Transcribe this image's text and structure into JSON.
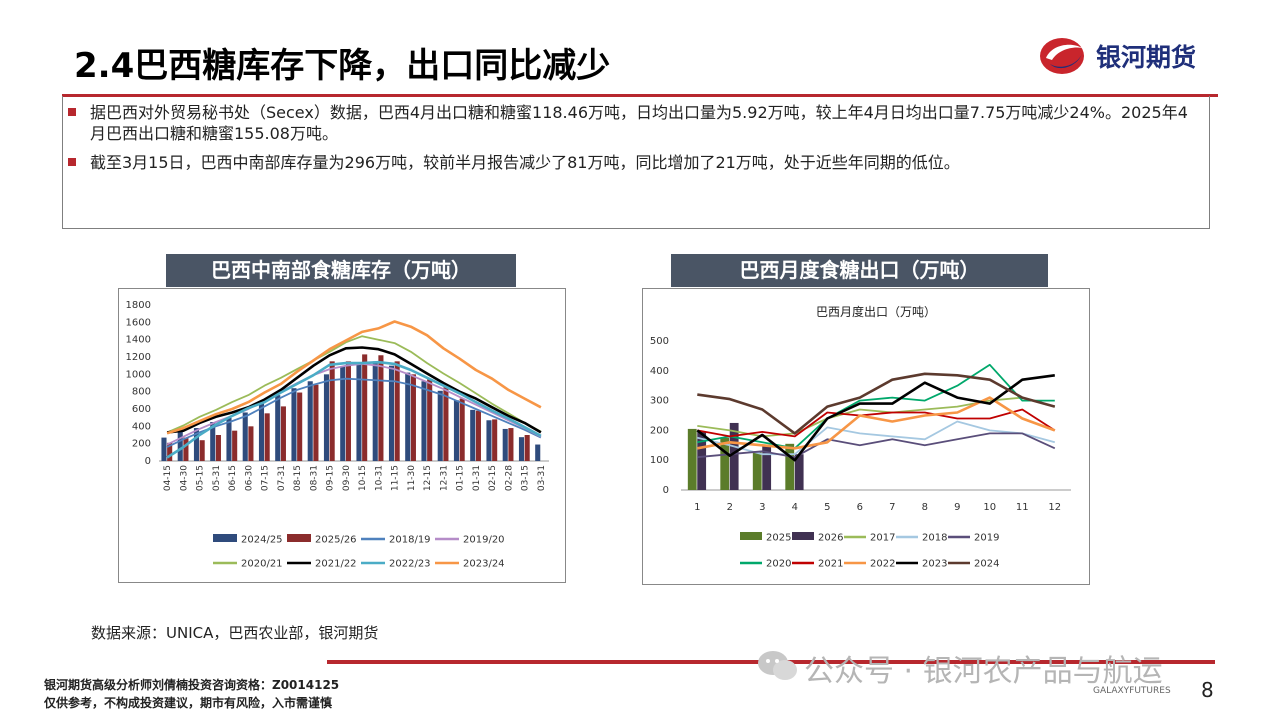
{
  "header": {
    "title": "2.4巴西糖库存下降，出口同比减少",
    "logo_text": "银河期货",
    "accent": "#b7282e"
  },
  "notes": [
    "据巴西对外贸易秘书处（Secex）数据，巴西4月出口糖和糖蜜118.46万吨，日均出口量为5.92万吨，较上年4月日均出口量7.75万吨减少24%。2025年4月巴西出口糖和糖蜜155.08万吨。",
    "截至3月15日，巴西中南部库存量为296万吨，较前半月报告减少了81万吨，同比增加了21万吨，处于近些年同期的低位。"
  ],
  "chart_data": [
    {
      "type": "bar",
      "title": "巴西中南部食糖库存（万吨）",
      "ylim": [
        0,
        1800
      ],
      "yticks": [
        0,
        200,
        400,
        600,
        800,
        1000,
        1200,
        1400,
        1600,
        1800
      ],
      "categories": [
        "04-15",
        "04-30",
        "05-15",
        "05-31",
        "06-15",
        "06-30",
        "07-15",
        "07-31",
        "08-15",
        "08-31",
        "09-15",
        "09-30",
        "10-15",
        "10-31",
        "11-15",
        "11-30",
        "12-15",
        "12-31",
        "01-15",
        "01-31",
        "02-15",
        "02-28",
        "03-15",
        "03-31"
      ],
      "legend_placement": "bottom",
      "series": [
        {
          "name": "2024/25",
          "kind": "bar",
          "color": "#2f4b7c",
          "values": [
            270,
            340,
            380,
            450,
            500,
            560,
            670,
            760,
            840,
            920,
            1000,
            1090,
            1140,
            1150,
            1100,
            1020,
            920,
            810,
            700,
            590,
            470,
            370,
            275,
            190
          ]
        },
        {
          "name": "2025/26",
          "kind": "bar",
          "color": "#8b2c2c",
          "values": [
            210,
            270,
            240,
            300,
            350,
            400,
            550,
            630,
            790,
            880,
            1150,
            1150,
            1230,
            1220,
            1150,
            1000,
            940,
            850,
            720,
            580,
            480,
            380,
            300,
            null
          ]
        },
        {
          "name": "2018/19",
          "kind": "line",
          "color": "#4f81bd",
          "values": [
            160,
            250,
            330,
            400,
            460,
            530,
            630,
            730,
            820,
            880,
            930,
            950,
            940,
            930,
            920,
            880,
            820,
            760,
            680,
            600,
            520,
            440,
            360,
            270
          ]
        },
        {
          "name": "2019/20",
          "kind": "line",
          "color": "#b58cc8",
          "values": [
            190,
            280,
            370,
            450,
            520,
            600,
            700,
            800,
            900,
            990,
            1060,
            1100,
            1120,
            1100,
            1060,
            990,
            910,
            830,
            740,
            650,
            560,
            470,
            380,
            280
          ]
        },
        {
          "name": "2020/21",
          "kind": "line",
          "color": "#9bbb59",
          "values": [
            330,
            410,
            510,
            590,
            680,
            760,
            870,
            960,
            1060,
            1160,
            1260,
            1370,
            1440,
            1400,
            1360,
            1260,
            1130,
            1010,
            900,
            780,
            660,
            550,
            440,
            340
          ]
        },
        {
          "name": "2021/22",
          "kind": "line",
          "color": "#000000",
          "values": [
            330,
            350,
            440,
            510,
            560,
            620,
            710,
            820,
            960,
            1100,
            1220,
            1300,
            1310,
            1290,
            1230,
            1120,
            1010,
            900,
            800,
            720,
            620,
            520,
            440,
            330
          ]
        },
        {
          "name": "2022/23",
          "kind": "line",
          "color": "#4bacc6",
          "values": [
            40,
            160,
            300,
            420,
            520,
            610,
            680,
            790,
            890,
            990,
            1110,
            1130,
            1130,
            1140,
            1120,
            1050,
            960,
            870,
            780,
            680,
            580,
            490,
            390,
            290
          ]
        },
        {
          "name": "2023/24",
          "kind": "line",
          "color": "#f79646",
          "values": [
            320,
            380,
            460,
            540,
            600,
            680,
            790,
            890,
            1030,
            1160,
            1290,
            1390,
            1490,
            1530,
            1610,
            1550,
            1450,
            1300,
            1180,
            1050,
            950,
            820,
            720,
            620
          ]
        }
      ]
    },
    {
      "type": "bar",
      "title": "巴西月度食糖出口（万吨）",
      "inner_title": "巴西月度出口（万吨）",
      "ylim": [
        0,
        500
      ],
      "yticks": [
        0,
        100,
        200,
        300,
        400,
        500
      ],
      "categories": [
        "1",
        "2",
        "3",
        "4",
        "5",
        "6",
        "7",
        "8",
        "9",
        "10",
        "11",
        "12"
      ],
      "legend_placement": "bottom",
      "series": [
        {
          "name": "2025",
          "kind": "bar",
          "color": "#5b7c2a",
          "values": [
            205,
            175,
            130,
            155,
            null,
            null,
            null,
            null,
            null,
            null,
            null,
            null
          ]
        },
        {
          "name": "2026",
          "kind": "bar",
          "color": "#403152",
          "values": [
            195,
            225,
            150,
            120,
            null,
            null,
            null,
            null,
            null,
            null,
            null,
            null
          ]
        },
        {
          "name": "2017",
          "kind": "line",
          "color": "#9bbb59",
          "values": [
            215,
            200,
            180,
            190,
            240,
            270,
            260,
            270,
            280,
            300,
            310,
            280
          ]
        },
        {
          "name": "2018",
          "kind": "line",
          "color": "#a5c8e1",
          "values": [
            175,
            150,
            120,
            120,
            210,
            190,
            180,
            170,
            230,
            200,
            190,
            160
          ]
        },
        {
          "name": "2019",
          "kind": "line",
          "color": "#5a4e7a",
          "values": [
            110,
            120,
            130,
            110,
            170,
            150,
            170,
            150,
            170,
            190,
            190,
            140
          ]
        },
        {
          "name": "2020",
          "kind": "line",
          "color": "#00a86b",
          "values": [
            160,
            180,
            160,
            140,
            240,
            300,
            310,
            300,
            350,
            420,
            300,
            300
          ]
        },
        {
          "name": "2021",
          "kind": "line",
          "color": "#c00000",
          "values": [
            200,
            180,
            195,
            180,
            260,
            250,
            260,
            260,
            240,
            240,
            270,
            200
          ]
        },
        {
          "name": "2022",
          "kind": "line",
          "color": "#f79646",
          "values": [
            140,
            160,
            150,
            140,
            160,
            250,
            230,
            250,
            260,
            310,
            240,
            200
          ]
        },
        {
          "name": "2023",
          "kind": "line",
          "color": "#000000",
          "values": [
            200,
            115,
            185,
            100,
            240,
            290,
            290,
            360,
            310,
            290,
            370,
            385
          ]
        },
        {
          "name": "2024",
          "kind": "line",
          "color": "#5c3a2e",
          "values": [
            320,
            305,
            270,
            190,
            280,
            310,
            370,
            390,
            385,
            370,
            310,
            280
          ]
        }
      ]
    }
  ],
  "source": "数据来源：UNICA，巴西农业部，银河期货",
  "footer": {
    "line1": "银河期货高级分析师刘倩楠投资咨询资格：Z0014125",
    "line2": "仅供参考，不构成投资建议，期市有风险，入市需谨慎"
  },
  "watermark": {
    "text": "公众号 · 银河农产品与航运",
    "sub": "GALAXYFUTURES",
    "icon": "wechat-icon"
  },
  "page_number": "8"
}
